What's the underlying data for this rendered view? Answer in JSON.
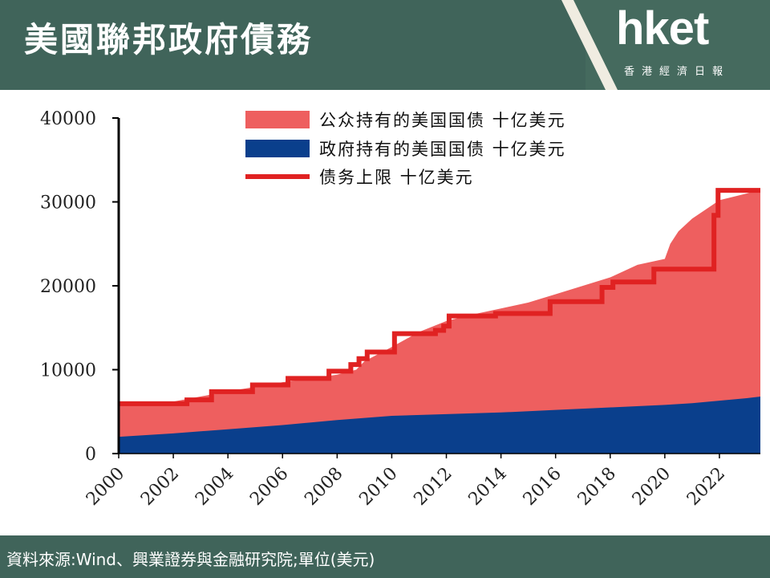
{
  "header": {
    "title": "美國聯邦政府債務",
    "logo": "hket",
    "logo_sub": "香港經濟日報"
  },
  "footer": {
    "source": "資料來源:Wind、興業證券與金融研究院;單位(美元)"
  },
  "colors": {
    "public": "#ee5f5f",
    "government": "#0a3f8c",
    "ceiling": "#e02222"
  },
  "chart_data": {
    "type": "area",
    "xlabel": "",
    "ylabel": "",
    "xlim": [
      2000,
      2023.5
    ],
    "ylim": [
      0,
      40000
    ],
    "yticks": [
      0,
      10000,
      20000,
      30000,
      40000
    ],
    "ytick_labels": [
      "0",
      "10000",
      "20000",
      "30000",
      "40000"
    ],
    "xtick_labels": [
      "2000",
      "2002",
      "2004",
      "2006",
      "2008",
      "2010",
      "2012",
      "2014",
      "2016",
      "2018",
      "2020",
      "2022"
    ],
    "legend": {
      "position": "top-right",
      "entries": [
        "公众持有的美国国债 十亿美元",
        "政府持有的美国国债 十亿美元",
        "债务上限 十亿美元"
      ]
    },
    "series": [
      {
        "name": "政府持有的美国国债 十亿美元",
        "kind": "area",
        "x": [
          2000,
          2002,
          2004,
          2006,
          2008,
          2010,
          2012,
          2014,
          2016,
          2018,
          2020,
          2021,
          2022,
          2023,
          2023.5
        ],
        "values": [
          2000,
          2400,
          2900,
          3400,
          4000,
          4500,
          4700,
          4900,
          5200,
          5500,
          5800,
          6000,
          6300,
          6600,
          6800
        ]
      },
      {
        "name": "公众持有的美国国债 十亿美元",
        "kind": "stacked-total",
        "x": [
          2000,
          2002,
          2004,
          2006,
          2008,
          2008.7,
          2009,
          2010,
          2011,
          2012,
          2013,
          2014,
          2015,
          2016,
          2017,
          2018,
          2019,
          2020,
          2020.2,
          2020.5,
          2021,
          2022,
          2023,
          2023.5
        ],
        "values": [
          5700,
          6200,
          7400,
          8500,
          9400,
          10000,
          11000,
          12700,
          14500,
          15800,
          16600,
          17300,
          18000,
          19000,
          20000,
          21000,
          22500,
          23200,
          25000,
          26500,
          28000,
          30200,
          31000,
          31500
        ]
      },
      {
        "name": "债务上限 十亿美元",
        "kind": "step",
        "x": [
          2000,
          2002.5,
          2003.4,
          2004.9,
          2006.2,
          2007.7,
          2008.5,
          2008.8,
          2009.1,
          2010.1,
          2011.6,
          2011.9,
          2012.1,
          2013.8,
          2015.8,
          2017.7,
          2018.1,
          2019.6,
          2021.8,
          2021.95,
          2023.5
        ],
        "values": [
          5950,
          6400,
          7384,
          8184,
          8965,
          9815,
          10615,
          11315,
          12104,
          14294,
          14694,
          15194,
          16394,
          16699,
          18113,
          19808,
          20456,
          21988,
          28401,
          31381,
          31381
        ]
      }
    ]
  }
}
